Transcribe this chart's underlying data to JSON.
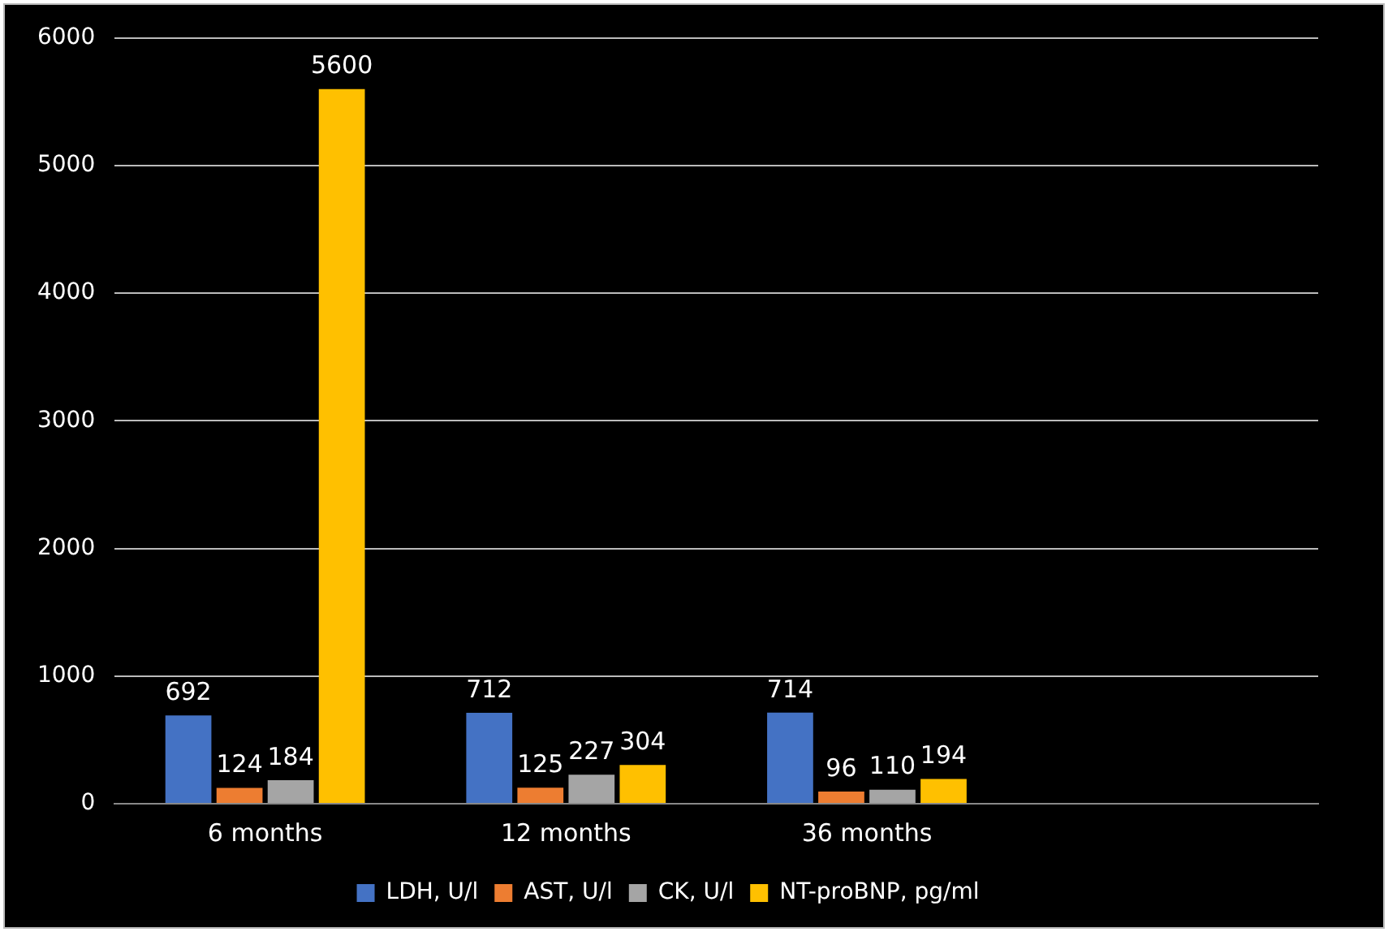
{
  "chart_data": {
    "type": "bar",
    "categories": [
      "6 months",
      "12 months",
      "36 months",
      null
    ],
    "series": [
      {
        "name": "LDH, U/l",
        "color": "#4472c4",
        "values": [
          692,
          712,
          714,
          null
        ]
      },
      {
        "name": "AST, U/l",
        "color": "#ed7d31",
        "values": [
          124,
          125,
          96,
          null
        ]
      },
      {
        "name": "CK, U/l",
        "color": "#a5a5a5",
        "values": [
          184,
          227,
          110,
          null
        ]
      },
      {
        "name": "NT-proBNP, pg/ml",
        "color": "#ffc000",
        "values": [
          5600,
          304,
          194,
          null
        ]
      }
    ],
    "ylim": [
      0,
      6000
    ],
    "yticks": [
      0,
      1000,
      2000,
      3000,
      4000,
      5000,
      6000
    ],
    "grid": "y",
    "legend": "bottom",
    "data_labels": true
  }
}
